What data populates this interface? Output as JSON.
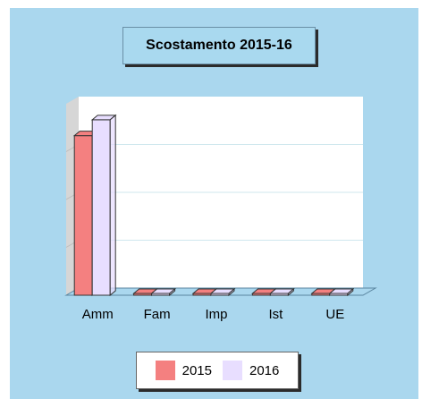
{
  "chart_data": {
    "type": "bar",
    "title": "Scostamento 2015-16",
    "categories": [
      "Amm",
      "Fam",
      "Imp",
      "Ist",
      "UE"
    ],
    "series": [
      {
        "name": "2015",
        "values": [
          100,
          0,
          0,
          0,
          0
        ],
        "color": "#f48080"
      },
      {
        "name": "2016",
        "values": [
          110,
          0,
          0,
          0,
          0
        ],
        "color": "#e8deff"
      }
    ],
    "ylim": [
      0,
      120
    ],
    "grid": true,
    "legend_position": "bottom",
    "colors": {
      "background": "#aad7ee",
      "plot": "#ffffff",
      "grid": "#cfe7ee",
      "side_wall": "#d6d6d6"
    }
  }
}
